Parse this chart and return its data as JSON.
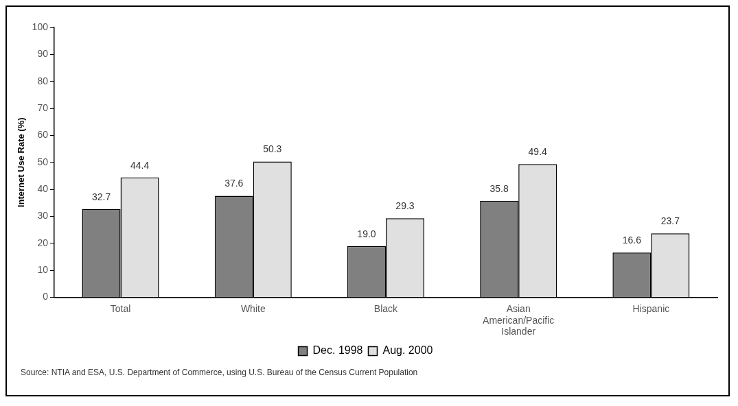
{
  "chart_data": {
    "type": "bar",
    "ylabel": "Internet Use Rate (%)",
    "categories": [
      "Total",
      "White",
      "Black",
      "Asian American/Pacific Islander",
      "Hispanic"
    ],
    "series": [
      {
        "name": "Dec. 1998",
        "color": "#808080",
        "values": [
          32.7,
          37.6,
          19.0,
          35.8,
          16.6
        ],
        "value_labels": [
          "32.7",
          "37.6",
          "19.0",
          "35.8",
          "16.6"
        ]
      },
      {
        "name": "Aug. 2000",
        "color": "#e0e0e0",
        "values": [
          44.4,
          50.3,
          29.3,
          49.4,
          23.7
        ],
        "value_labels": [
          "44.4",
          "50.3",
          "29.3",
          "49.4",
          "23.7"
        ]
      }
    ],
    "ylim": [
      0,
      100
    ],
    "yticks": [
      0,
      10,
      20,
      30,
      40,
      50,
      60,
      70,
      80,
      90,
      100
    ],
    "grid": false,
    "legend": "bottom",
    "annotations": [
      "Source: NTIA and ESA, U.S. Department of Commerce, using U.S. Bureau of the Census Current Population"
    ]
  }
}
